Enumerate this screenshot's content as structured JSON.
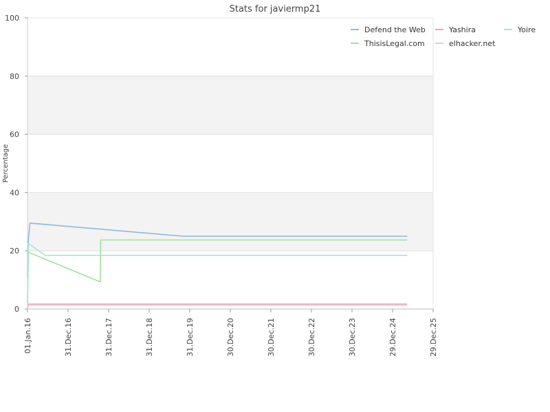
{
  "chart_data": {
    "type": "line",
    "title": "Stats for javiermp21",
    "xlabel": "",
    "ylabel": "Percentage",
    "ylim": [
      0,
      100
    ],
    "xlim": [
      "2016-01-01",
      "2025-12-29"
    ],
    "y_ticks": [
      0,
      20,
      40,
      60,
      80,
      100
    ],
    "x_ticks": [
      {
        "date": "2016-01-01",
        "label": "01.Jan.16"
      },
      {
        "date": "2016-12-31",
        "label": "31.Dec.16"
      },
      {
        "date": "2017-12-31",
        "label": "31.Dec.17"
      },
      {
        "date": "2018-12-31",
        "label": "31.Dec.18"
      },
      {
        "date": "2019-12-31",
        "label": "31.Dec.19"
      },
      {
        "date": "2020-12-30",
        "label": "30.Dec.20"
      },
      {
        "date": "2021-12-30",
        "label": "30.Dec.21"
      },
      {
        "date": "2022-12-30",
        "label": "30.Dec.22"
      },
      {
        "date": "2023-12-30",
        "label": "30.Dec.23"
      },
      {
        "date": "2024-12-29",
        "label": "29.Dec.24"
      },
      {
        "date": "2025-12-29",
        "label": "29.Dec.25"
      }
    ],
    "grid": "alternating horizontal bands",
    "legend_position": "top-right",
    "series": [
      {
        "name": "Defend the Web",
        "color": "#8ab8e6",
        "points": [
          [
            "2016-01-01",
            11
          ],
          [
            "2016-01-09",
            24
          ],
          [
            "2016-01-24",
            29.5
          ],
          [
            "2019-11-01",
            25
          ],
          [
            "2025-05-10",
            25
          ]
        ]
      },
      {
        "name": "ThisisLegal.com",
        "color": "#9ee09e",
        "points": [
          [
            "2016-01-01",
            2
          ],
          [
            "2016-01-09",
            19.5
          ],
          [
            "2017-10-18",
            9.3
          ],
          [
            "2017-10-20",
            23.7
          ],
          [
            "2025-05-10",
            23.7
          ]
        ]
      },
      {
        "name": "Yashira",
        "color": "#f4a0b4",
        "points": [
          [
            "2016-01-01",
            0.5
          ],
          [
            "2016-01-09",
            1.7
          ],
          [
            "2025-05-10",
            1.7
          ]
        ]
      },
      {
        "name": "elhacker.net",
        "color": "#e8c8d8",
        "points": [
          [
            "2016-01-01",
            1
          ],
          [
            "2016-01-09",
            1.3
          ],
          [
            "2025-05-10",
            1.3
          ]
        ]
      },
      {
        "name": "Yoire",
        "color": "#a0e6d8",
        "points": [
          [
            "2016-01-01",
            3
          ],
          [
            "2016-01-09",
            22.5
          ],
          [
            "2016-06-10",
            18.4
          ],
          [
            "2025-05-10",
            18.4
          ]
        ]
      }
    ]
  }
}
